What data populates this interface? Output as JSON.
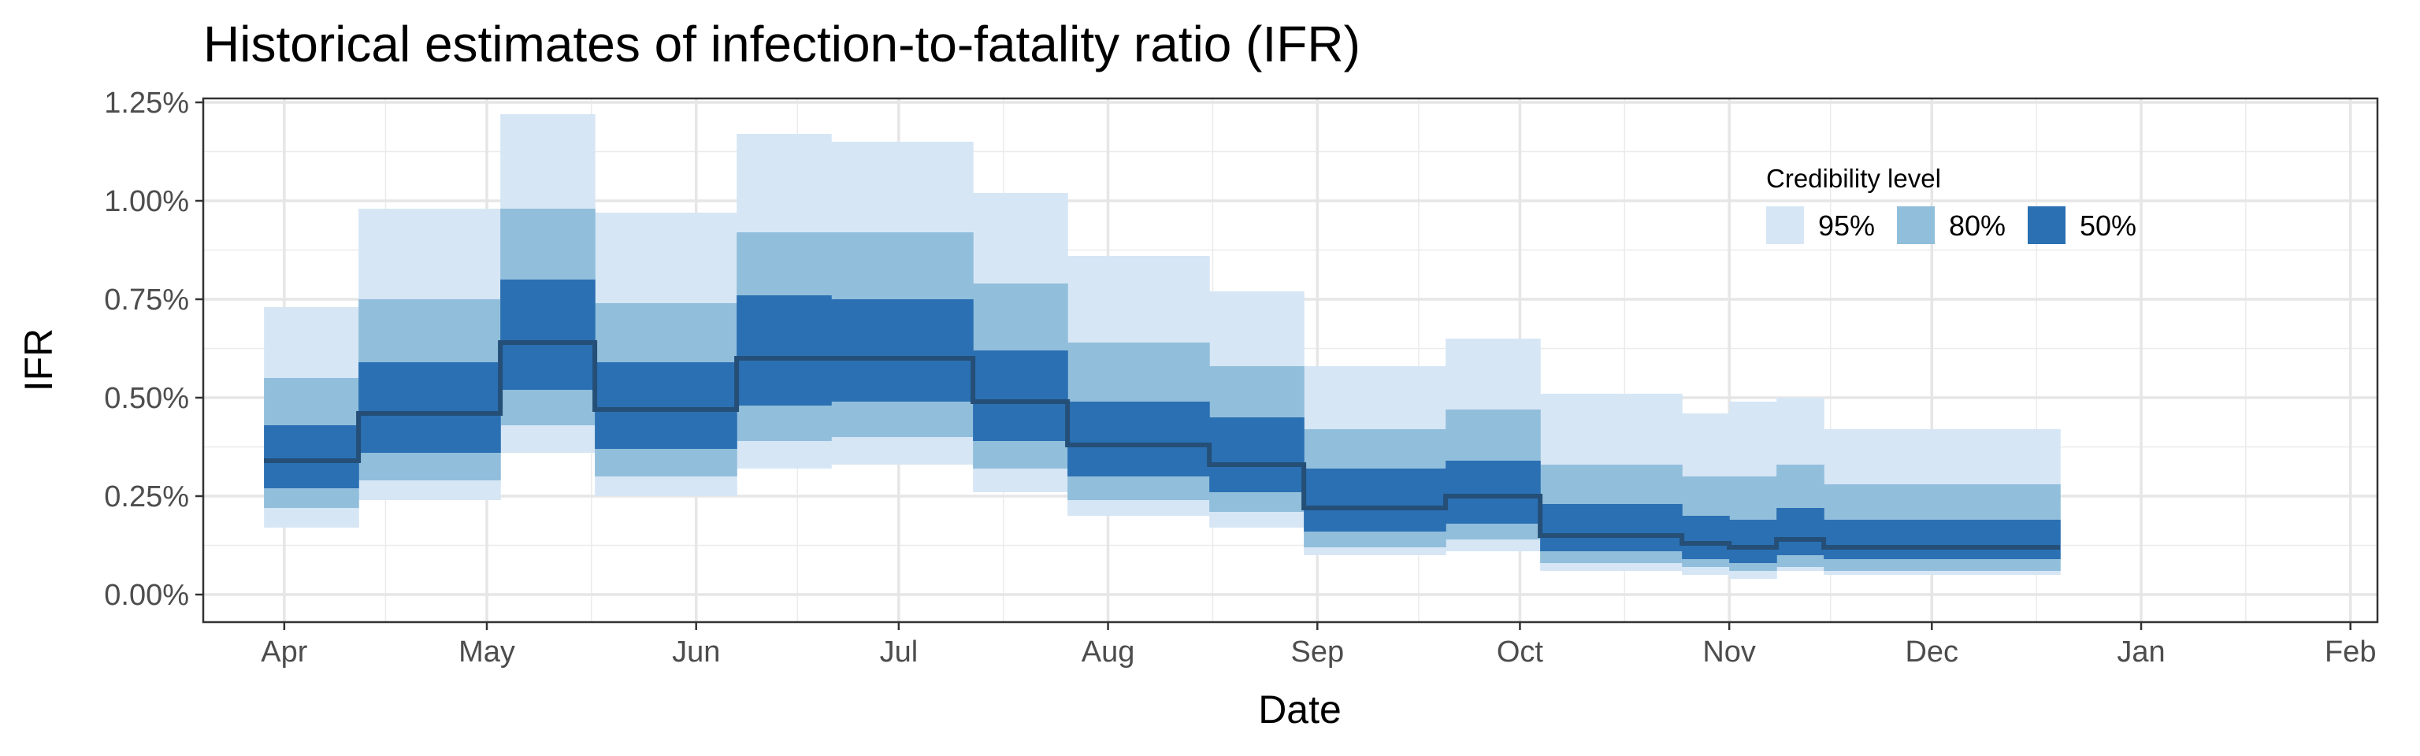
{
  "chart_data": {
    "type": "area",
    "title": "Historical estimates of infection-to-fatality ratio (IFR)",
    "xlabel": "Date",
    "ylabel": "IFR",
    "x_axis": {
      "type": "date",
      "range": [
        "2020-03-20",
        "2021-02-05"
      ],
      "ticks": [
        {
          "date": "2020-04-01",
          "label": "Apr"
        },
        {
          "date": "2020-05-01",
          "label": "May"
        },
        {
          "date": "2020-06-01",
          "label": "Jun"
        },
        {
          "date": "2020-07-01",
          "label": "Jul"
        },
        {
          "date": "2020-08-01",
          "label": "Aug"
        },
        {
          "date": "2020-09-01",
          "label": "Sep"
        },
        {
          "date": "2020-10-01",
          "label": "Oct"
        },
        {
          "date": "2020-11-01",
          "label": "Nov"
        },
        {
          "date": "2020-12-01",
          "label": "Dec"
        },
        {
          "date": "2021-01-01",
          "label": "Jan"
        },
        {
          "date": "2021-02-01",
          "label": "Feb"
        }
      ]
    },
    "y_axis": {
      "range": [
        -0.07,
        1.26
      ],
      "unit": "%",
      "ticks": [
        {
          "value": 0.0,
          "label": "0.00%"
        },
        {
          "value": 0.25,
          "label": "0.25%"
        },
        {
          "value": 0.5,
          "label": "0.50%"
        },
        {
          "value": 0.75,
          "label": "0.75%"
        },
        {
          "value": 1.0,
          "label": "1.00%"
        },
        {
          "value": 1.25,
          "label": "1.25%"
        }
      ]
    },
    "grid": true,
    "legend": {
      "title": "Credibility level",
      "placement": "top-right",
      "entries": [
        {
          "label": "95%",
          "color": "#d6e6f5"
        },
        {
          "label": "80%",
          "color": "#91bedb"
        },
        {
          "label": "50%",
          "color": "#2b70b3"
        }
      ]
    },
    "median_line_color": "#254f77",
    "series": [
      {
        "start": "2020-03-29",
        "end": "2020-04-12",
        "median": 0.34,
        "lo50": 0.27,
        "hi50": 0.43,
        "lo80": 0.22,
        "hi80": 0.55,
        "lo95": 0.17,
        "hi95": 0.73
      },
      {
        "start": "2020-04-12",
        "end": "2020-05-03",
        "median": 0.46,
        "lo50": 0.36,
        "hi50": 0.59,
        "lo80": 0.29,
        "hi80": 0.75,
        "lo95": 0.24,
        "hi95": 0.98
      },
      {
        "start": "2020-05-03",
        "end": "2020-05-17",
        "median": 0.64,
        "lo50": 0.52,
        "hi50": 0.8,
        "lo80": 0.43,
        "hi80": 0.98,
        "lo95": 0.36,
        "hi95": 1.22
      },
      {
        "start": "2020-05-17",
        "end": "2020-06-07",
        "median": 0.47,
        "lo50": 0.37,
        "hi50": 0.59,
        "lo80": 0.3,
        "hi80": 0.74,
        "lo95": 0.25,
        "hi95": 0.97
      },
      {
        "start": "2020-06-07",
        "end": "2020-06-21",
        "median": 0.6,
        "lo50": 0.48,
        "hi50": 0.76,
        "lo80": 0.39,
        "hi80": 0.92,
        "lo95": 0.32,
        "hi95": 1.17
      },
      {
        "start": "2020-06-21",
        "end": "2020-07-12",
        "median": 0.6,
        "lo50": 0.49,
        "hi50": 0.75,
        "lo80": 0.4,
        "hi80": 0.92,
        "lo95": 0.33,
        "hi95": 1.15
      },
      {
        "start": "2020-07-12",
        "end": "2020-07-26",
        "median": 0.49,
        "lo50": 0.39,
        "hi50": 0.62,
        "lo80": 0.32,
        "hi80": 0.79,
        "lo95": 0.26,
        "hi95": 1.02
      },
      {
        "start": "2020-07-26",
        "end": "2020-08-16",
        "median": 0.38,
        "lo50": 0.3,
        "hi50": 0.49,
        "lo80": 0.24,
        "hi80": 0.64,
        "lo95": 0.2,
        "hi95": 0.86
      },
      {
        "start": "2020-08-16",
        "end": "2020-08-30",
        "median": 0.33,
        "lo50": 0.26,
        "hi50": 0.45,
        "lo80": 0.21,
        "hi80": 0.58,
        "lo95": 0.17,
        "hi95": 0.77
      },
      {
        "start": "2020-08-30",
        "end": "2020-09-20",
        "median": 0.22,
        "lo50": 0.16,
        "hi50": 0.32,
        "lo80": 0.12,
        "hi80": 0.42,
        "lo95": 0.1,
        "hi95": 0.58
      },
      {
        "start": "2020-09-20",
        "end": "2020-10-04",
        "median": 0.25,
        "lo50": 0.18,
        "hi50": 0.34,
        "lo80": 0.14,
        "hi80": 0.47,
        "lo95": 0.11,
        "hi95": 0.65
      },
      {
        "start": "2020-10-04",
        "end": "2020-10-25",
        "median": 0.15,
        "lo50": 0.11,
        "hi50": 0.23,
        "lo80": 0.08,
        "hi80": 0.33,
        "lo95": 0.06,
        "hi95": 0.51
      },
      {
        "start": "2020-10-25",
        "end": "2020-11-01",
        "median": 0.13,
        "lo50": 0.09,
        "hi50": 0.2,
        "lo80": 0.07,
        "hi80": 0.3,
        "lo95": 0.05,
        "hi95": 0.46
      },
      {
        "start": "2020-11-01",
        "end": "2020-11-08",
        "median": 0.12,
        "lo50": 0.08,
        "hi50": 0.19,
        "lo80": 0.06,
        "hi80": 0.3,
        "lo95": 0.04,
        "hi95": 0.49
      },
      {
        "start": "2020-11-08",
        "end": "2020-11-15",
        "median": 0.14,
        "lo50": 0.1,
        "hi50": 0.22,
        "lo80": 0.07,
        "hi80": 0.33,
        "lo95": 0.06,
        "hi95": 0.5
      },
      {
        "start": "2020-11-15",
        "end": "2020-12-20",
        "median": 0.12,
        "lo50": 0.09,
        "hi50": 0.19,
        "lo80": 0.06,
        "hi80": 0.28,
        "lo95": 0.05,
        "hi95": 0.42
      }
    ]
  }
}
